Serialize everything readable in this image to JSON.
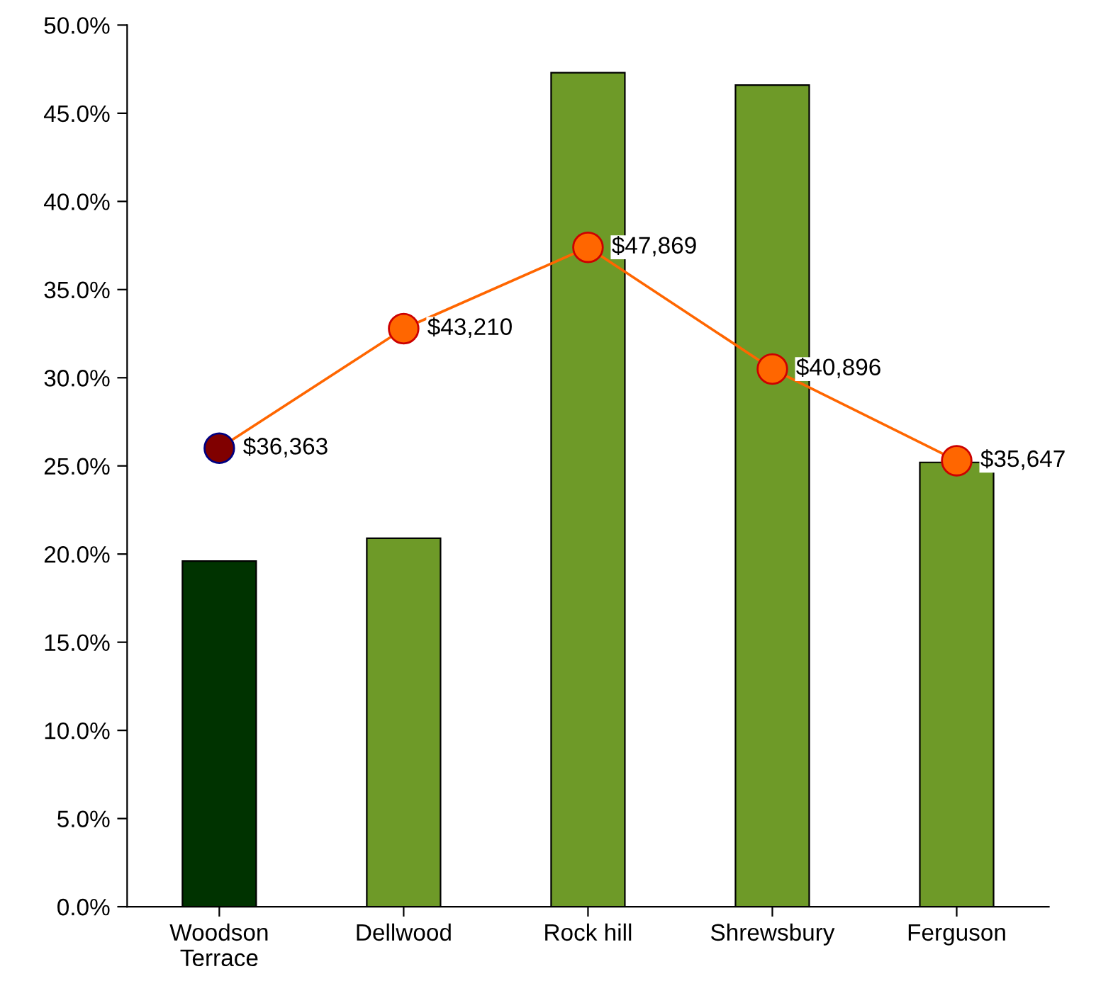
{
  "chart_data": {
    "type": "bar",
    "categories": [
      "Woodson\nTerrace",
      "Dellwood",
      "Rock hill",
      "Shrewsbury",
      "Ferguson"
    ],
    "ylim": [
      0,
      50
    ],
    "yticks": [
      {
        "value": 0,
        "label": "0.0%"
      },
      {
        "value": 5,
        "label": "5.0%"
      },
      {
        "value": 10,
        "label": "10.0%"
      },
      {
        "value": 15,
        "label": "15.0%"
      },
      {
        "value": 20,
        "label": "20.0%"
      },
      {
        "value": 25,
        "label": "25.0%"
      },
      {
        "value": 30,
        "label": "30.0%"
      },
      {
        "value": 35,
        "label": "35.0%"
      },
      {
        "value": 40,
        "label": "40.0%"
      },
      {
        "value": 45,
        "label": "45.0%"
      },
      {
        "value": 50,
        "label": "50.0%"
      }
    ],
    "y2lim": [
      10100,
      60600
    ],
    "tick_labels": "xy",
    "grid": false,
    "legend": false,
    "marker": "circle",
    "line_style": "solid",
    "series": [
      {
        "colors": [
          "#003300",
          "#6e9a28",
          "#6e9a28",
          "#6e9a28",
          "#6e9a28"
        ],
        "values": [
          19.6,
          20.9,
          47.3,
          46.6,
          25.2
        ]
      },
      {
        "type": "line",
        "axis": "y2",
        "color": "#ff6600",
        "colors": [
          "#800000",
          "#ff6600",
          "#ff6600",
          "#ff6600",
          "#ff6600"
        ],
        "values": [
          36363,
          43210,
          47869,
          40896,
          35647
        ],
        "value_labels": [
          "$36,363",
          "$43,210",
          "$47,869",
          "$40,896",
          "$35,647"
        ]
      }
    ]
  }
}
